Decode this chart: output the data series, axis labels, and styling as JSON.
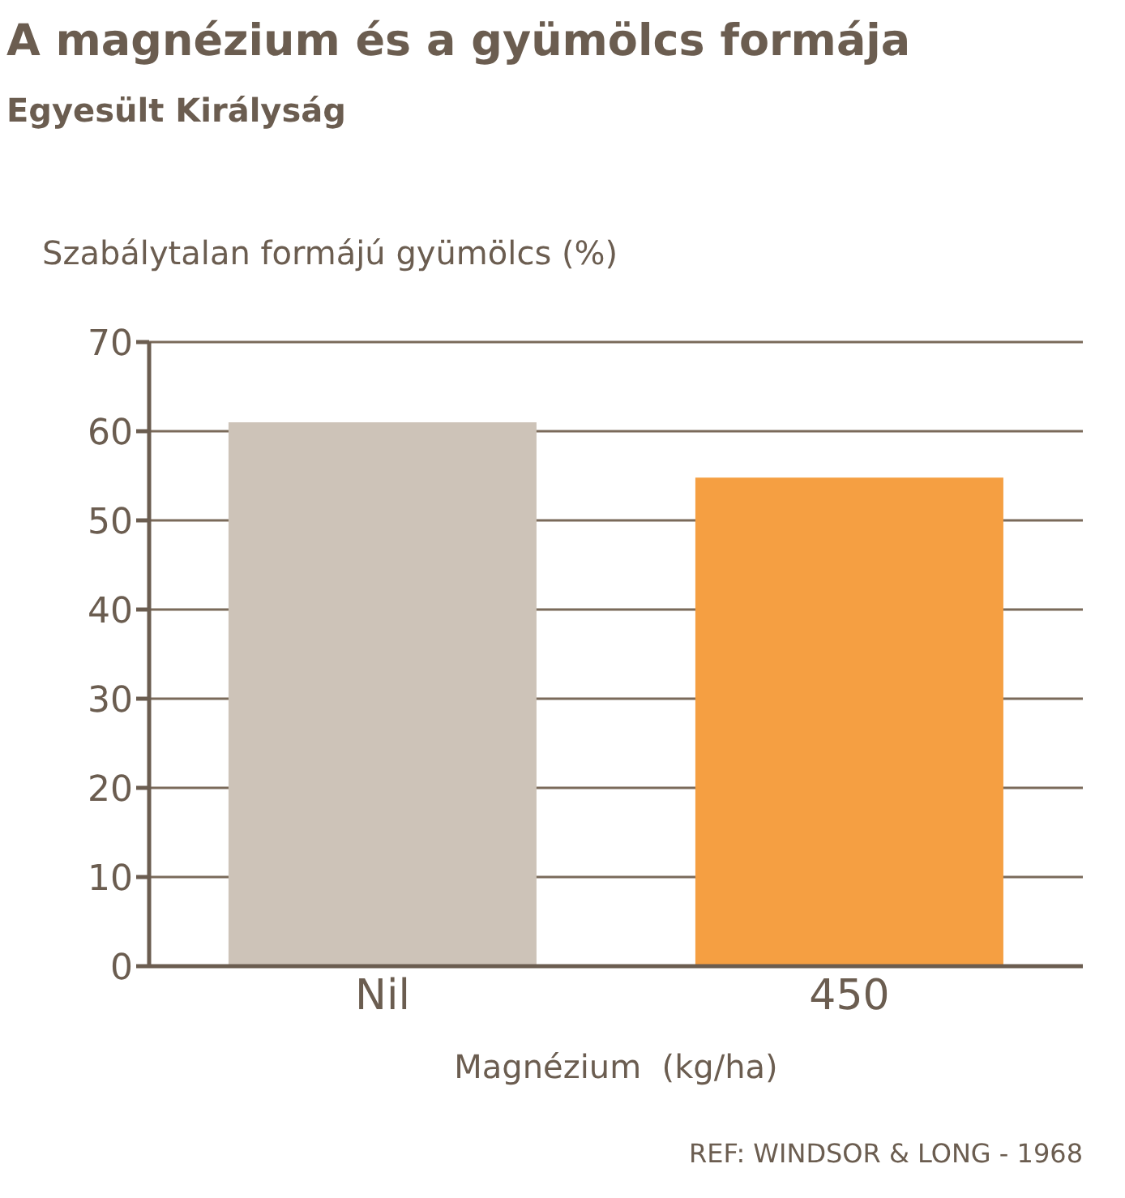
{
  "chart_data": {
    "type": "bar",
    "title": "A magnézium és a gyümölcs formája",
    "subtitle": "Egyesült Királyság",
    "ylabel": "Szabálytalan formájú gyümölcs (%)",
    "xlabel": "Magnézium  (kg/ha)",
    "categories": [
      "Nil",
      "450"
    ],
    "values": [
      61,
      54.8
    ],
    "colors": [
      "#cdc3b8",
      "#f59f42"
    ],
    "ylim": [
      0,
      70
    ],
    "yticks": [
      0,
      10,
      20,
      30,
      40,
      50,
      60,
      70
    ],
    "grid": "y",
    "annotations": [
      "REF: WINDSOR & LONG - 1968"
    ]
  }
}
